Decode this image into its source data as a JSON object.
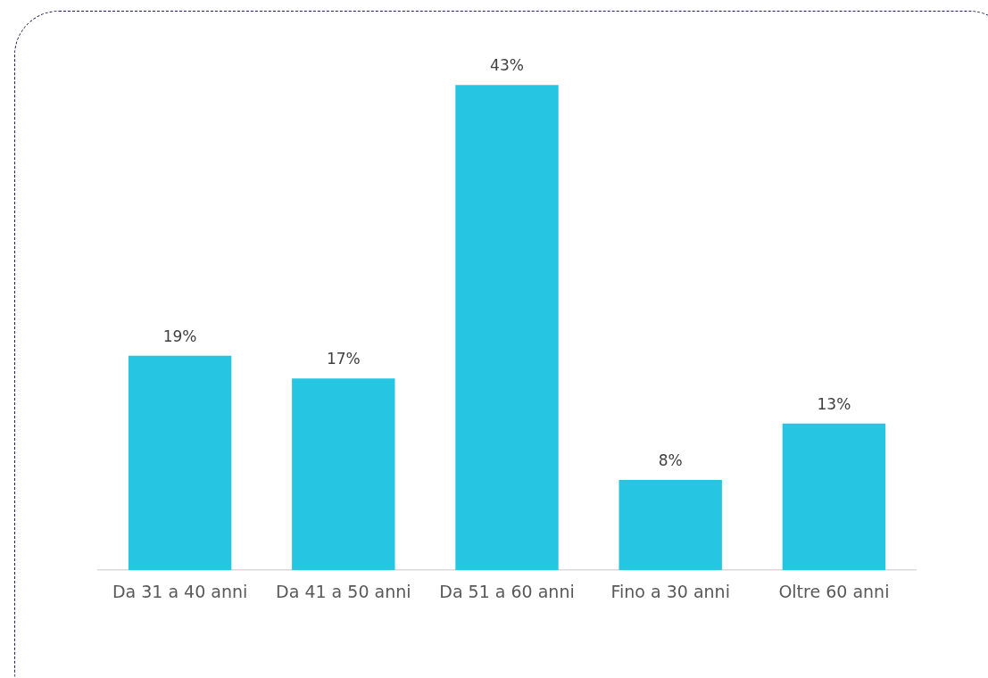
{
  "chart_data": {
    "type": "bar",
    "categories": [
      "Da 31 a 40 anni",
      "Da 41 a 50 anni",
      "Da 51 a 60 anni",
      "Fino a 30 anni",
      "Oltre 60 anni"
    ],
    "values": [
      19,
      17,
      43,
      8,
      13
    ],
    "value_labels": [
      "19%",
      "17%",
      "43%",
      "8%",
      "13%"
    ],
    "color": "#26c6e2",
    "grid": false,
    "legend": false
  }
}
